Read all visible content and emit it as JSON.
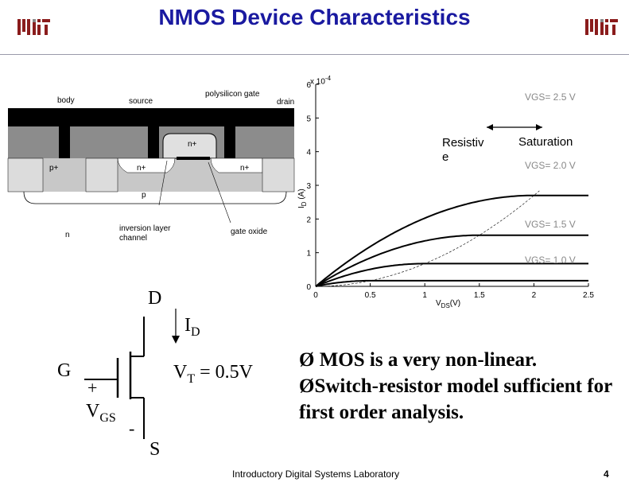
{
  "slide": {
    "title": "NMOS Device Characteristics",
    "page_number": "4",
    "footer": "Introductory Digital Systems Laboratory"
  },
  "cross_section": {
    "labels": {
      "body": "body",
      "source": "source",
      "polysilicon_gate": "polysilicon gate",
      "drain": "drain",
      "gate": "gate",
      "p_plus": "p+",
      "n_plus_left": "n+",
      "n_plus_right": "n+",
      "n_plus_top": "n+",
      "p": "p",
      "n": "n",
      "inversion_layer": "inversion layer",
      "channel": "channel",
      "gate_oxide": "gate oxide"
    }
  },
  "chart_data": {
    "type": "line",
    "y_exponent": "x 10",
    "y_exponent_power": "-4",
    "xlabel": "V",
    "xlabel_sub": "DS",
    "xlabel_unit": "(V)",
    "ylabel": "(A)",
    "ylabel_prefix": "I",
    "ylabel_sub": "D",
    "xlim": [
      0,
      2.5
    ],
    "ylim": [
      0,
      6
    ],
    "xticks": [
      "0",
      "0.5",
      "1",
      "1.5",
      "2",
      "2.5"
    ],
    "yticks": [
      "0",
      "1",
      "2",
      "3",
      "4",
      "5",
      "6"
    ],
    "series": [
      {
        "name": "VGS= 2.5 V",
        "vt_drive": 2.0,
        "k": 1.35,
        "color": "#000000"
      },
      {
        "name": "VGS= 2.0 V",
        "vt_drive": 1.5,
        "k": 1.35,
        "color": "#000000"
      },
      {
        "name": "VGS= 1.5 V",
        "vt_drive": 1.0,
        "k": 1.35,
        "color": "#000000"
      },
      {
        "name": "VGS= 1.0 V",
        "vt_drive": 0.5,
        "k": 1.35,
        "color": "#000000"
      }
    ],
    "annotations": {
      "resistive": "Resistiv e",
      "saturation": "Saturation"
    }
  },
  "schematic": {
    "drain": "D",
    "gate": "G",
    "source": "S",
    "current": "I",
    "current_sub": "D",
    "vt": "V",
    "vt_sub": "T",
    "vt_value": " = 0.5V",
    "plus": "+",
    "minus": "-",
    "vgs": "V",
    "vgs_sub": "GS"
  },
  "bullets": [
    "MOS is a very non-linear.",
    "Switch-resistor model sufficient for first order analysis."
  ],
  "bullet_marker": "Ø",
  "colors": {
    "title": "#1a1aa0",
    "logo": "#8a1c1c"
  }
}
